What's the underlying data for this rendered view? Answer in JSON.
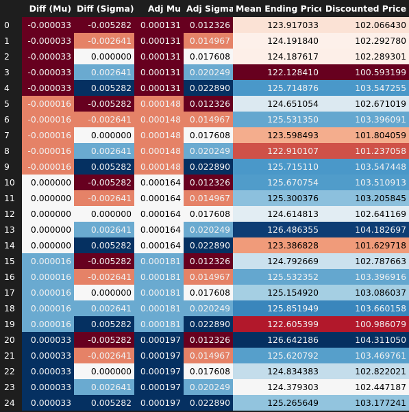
{
  "columns": [
    "Diff (Mu)",
    "Diff (Sigma)",
    "Adj Mu",
    "Adj Sigma",
    "Mean Ending Price",
    "Discounted Price"
  ],
  "rows": [
    {
      "index": "0",
      "cells": [
        {
          "v": "-0.000033",
          "bg": "#67001f",
          "fg": "#f1f1f1"
        },
        {
          "v": "-0.005282",
          "bg": "#67001f",
          "fg": "#f1f1f1"
        },
        {
          "v": "0.000131",
          "bg": "#67001f",
          "fg": "#f1f1f1"
        },
        {
          "v": "0.012326",
          "bg": "#67001f",
          "fg": "#f1f1f1"
        },
        {
          "v": "123.917033",
          "bg": "#fbe2d5",
          "fg": "#000000"
        },
        {
          "v": "102.066430",
          "bg": "#fbe2d5",
          "fg": "#000000"
        }
      ]
    },
    {
      "index": "1",
      "cells": [
        {
          "v": "-0.000033",
          "bg": "#67001f",
          "fg": "#f1f1f1"
        },
        {
          "v": "-0.002641",
          "bg": "#e58267",
          "fg": "#f1f1f1"
        },
        {
          "v": "0.000131",
          "bg": "#67001f",
          "fg": "#f1f1f1"
        },
        {
          "v": "0.014967",
          "bg": "#e58267",
          "fg": "#f1f1f1"
        },
        {
          "v": "124.191840",
          "bg": "#fdf0ea",
          "fg": "#000000"
        },
        {
          "v": "102.292780",
          "bg": "#fdf0ea",
          "fg": "#000000"
        }
      ]
    },
    {
      "index": "2",
      "cells": [
        {
          "v": "-0.000033",
          "bg": "#67001f",
          "fg": "#f1f1f1"
        },
        {
          "v": "0.000000",
          "bg": "#f7f7f7",
          "fg": "#000000"
        },
        {
          "v": "0.000131",
          "bg": "#67001f",
          "fg": "#f1f1f1"
        },
        {
          "v": "0.017608",
          "bg": "#f7f7f7",
          "fg": "#000000"
        },
        {
          "v": "124.187617",
          "bg": "#fdefe8",
          "fg": "#000000"
        },
        {
          "v": "102.289301",
          "bg": "#fdefe8",
          "fg": "#000000"
        }
      ]
    },
    {
      "index": "3",
      "cells": [
        {
          "v": "-0.000033",
          "bg": "#67001f",
          "fg": "#f1f1f1"
        },
        {
          "v": "0.002641",
          "bg": "#6aaad0",
          "fg": "#f1f1f1"
        },
        {
          "v": "0.000131",
          "bg": "#67001f",
          "fg": "#f1f1f1"
        },
        {
          "v": "0.020249",
          "bg": "#6aaad0",
          "fg": "#f1f1f1"
        },
        {
          "v": "122.128410",
          "bg": "#67001f",
          "fg": "#f1f1f1"
        },
        {
          "v": "100.593199",
          "bg": "#67001f",
          "fg": "#f1f1f1"
        }
      ]
    },
    {
      "index": "4",
      "cells": [
        {
          "v": "-0.000033",
          "bg": "#67001f",
          "fg": "#f1f1f1"
        },
        {
          "v": "0.005282",
          "bg": "#053061",
          "fg": "#f1f1f1"
        },
        {
          "v": "0.000131",
          "bg": "#67001f",
          "fg": "#f1f1f1"
        },
        {
          "v": "0.022890",
          "bg": "#053061",
          "fg": "#f1f1f1"
        },
        {
          "v": "125.714876",
          "bg": "#4a98c9",
          "fg": "#f1f1f1"
        },
        {
          "v": "103.547255",
          "bg": "#4a98c9",
          "fg": "#f1f1f1"
        }
      ]
    },
    {
      "index": "5",
      "cells": [
        {
          "v": "-0.000016",
          "bg": "#e58267",
          "fg": "#f1f1f1"
        },
        {
          "v": "-0.005282",
          "bg": "#67001f",
          "fg": "#f1f1f1"
        },
        {
          "v": "0.000148",
          "bg": "#e58267",
          "fg": "#f1f1f1"
        },
        {
          "v": "0.012326",
          "bg": "#67001f",
          "fg": "#f1f1f1"
        },
        {
          "v": "124.651054",
          "bg": "#dce9f1",
          "fg": "#000000"
        },
        {
          "v": "102.671019",
          "bg": "#dce9f1",
          "fg": "#000000"
        }
      ]
    },
    {
      "index": "6",
      "cells": [
        {
          "v": "-0.000016",
          "bg": "#e58267",
          "fg": "#f1f1f1"
        },
        {
          "v": "-0.002641",
          "bg": "#e58267",
          "fg": "#f1f1f1"
        },
        {
          "v": "0.000148",
          "bg": "#e58267",
          "fg": "#f1f1f1"
        },
        {
          "v": "0.014967",
          "bg": "#e58267",
          "fg": "#f1f1f1"
        },
        {
          "v": "125.531350",
          "bg": "#64a7cf",
          "fg": "#f1f1f1"
        },
        {
          "v": "103.396091",
          "bg": "#64a7cf",
          "fg": "#f1f1f1"
        }
      ]
    },
    {
      "index": "7",
      "cells": [
        {
          "v": "-0.000016",
          "bg": "#e58267",
          "fg": "#f1f1f1"
        },
        {
          "v": "0.000000",
          "bg": "#f7f7f7",
          "fg": "#000000"
        },
        {
          "v": "0.000148",
          "bg": "#e58267",
          "fg": "#f1f1f1"
        },
        {
          "v": "0.017608",
          "bg": "#f7f7f7",
          "fg": "#000000"
        },
        {
          "v": "123.598493",
          "bg": "#f4ad8d",
          "fg": "#000000"
        },
        {
          "v": "101.804059",
          "bg": "#f4ad8d",
          "fg": "#000000"
        }
      ]
    },
    {
      "index": "8",
      "cells": [
        {
          "v": "-0.000016",
          "bg": "#e58267",
          "fg": "#f1f1f1"
        },
        {
          "v": "0.002641",
          "bg": "#6aaad0",
          "fg": "#f1f1f1"
        },
        {
          "v": "0.000148",
          "bg": "#e58267",
          "fg": "#f1f1f1"
        },
        {
          "v": "0.020249",
          "bg": "#6aaad0",
          "fg": "#f1f1f1"
        },
        {
          "v": "122.910107",
          "bg": "#cf5148",
          "fg": "#f1f1f1"
        },
        {
          "v": "101.237058",
          "bg": "#cf5148",
          "fg": "#f1f1f1"
        }
      ]
    },
    {
      "index": "9",
      "cells": [
        {
          "v": "-0.000016",
          "bg": "#e58267",
          "fg": "#f1f1f1"
        },
        {
          "v": "0.005282",
          "bg": "#053061",
          "fg": "#f1f1f1"
        },
        {
          "v": "0.000148",
          "bg": "#e58267",
          "fg": "#f1f1f1"
        },
        {
          "v": "0.022890",
          "bg": "#053061",
          "fg": "#f1f1f1"
        },
        {
          "v": "125.715110",
          "bg": "#4a98c9",
          "fg": "#f1f1f1"
        },
        {
          "v": "103.547448",
          "bg": "#4a98c9",
          "fg": "#f1f1f1"
        }
      ]
    },
    {
      "index": "10",
      "cells": [
        {
          "v": "0.000000",
          "bg": "#f7f7f7",
          "fg": "#000000"
        },
        {
          "v": "-0.005282",
          "bg": "#67001f",
          "fg": "#f1f1f1"
        },
        {
          "v": "0.000164",
          "bg": "#f7f7f7",
          "fg": "#000000"
        },
        {
          "v": "0.012326",
          "bg": "#67001f",
          "fg": "#f1f1f1"
        },
        {
          "v": "125.670754",
          "bg": "#509cca",
          "fg": "#f1f1f1"
        },
        {
          "v": "103.510913",
          "bg": "#509cca",
          "fg": "#f1f1f1"
        }
      ]
    },
    {
      "index": "11",
      "cells": [
        {
          "v": "0.000000",
          "bg": "#f7f7f7",
          "fg": "#000000"
        },
        {
          "v": "-0.002641",
          "bg": "#e58267",
          "fg": "#f1f1f1"
        },
        {
          "v": "0.000164",
          "bg": "#f7f7f7",
          "fg": "#000000"
        },
        {
          "v": "0.014967",
          "bg": "#e58267",
          "fg": "#f1f1f1"
        },
        {
          "v": "125.300376",
          "bg": "#8cc0dd",
          "fg": "#000000"
        },
        {
          "v": "103.205845",
          "bg": "#8cc0dd",
          "fg": "#000000"
        }
      ]
    },
    {
      "index": "12",
      "cells": [
        {
          "v": "0.000000",
          "bg": "#f7f7f7",
          "fg": "#000000"
        },
        {
          "v": "0.000000",
          "bg": "#f7f7f7",
          "fg": "#000000"
        },
        {
          "v": "0.000164",
          "bg": "#f7f7f7",
          "fg": "#000000"
        },
        {
          "v": "0.017608",
          "bg": "#f7f7f7",
          "fg": "#000000"
        },
        {
          "v": "124.614813",
          "bg": "#e2edf3",
          "fg": "#000000"
        },
        {
          "v": "102.641169",
          "bg": "#e2edf3",
          "fg": "#000000"
        }
      ]
    },
    {
      "index": "13",
      "cells": [
        {
          "v": "0.000000",
          "bg": "#f7f7f7",
          "fg": "#000000"
        },
        {
          "v": "0.002641",
          "bg": "#6aaad0",
          "fg": "#f1f1f1"
        },
        {
          "v": "0.000164",
          "bg": "#f7f7f7",
          "fg": "#000000"
        },
        {
          "v": "0.020249",
          "bg": "#6aaad0",
          "fg": "#f1f1f1"
        },
        {
          "v": "126.486355",
          "bg": "#0d3d74",
          "fg": "#f1f1f1"
        },
        {
          "v": "104.182697",
          "bg": "#0d3d74",
          "fg": "#f1f1f1"
        }
      ]
    },
    {
      "index": "14",
      "cells": [
        {
          "v": "0.000000",
          "bg": "#f7f7f7",
          "fg": "#000000"
        },
        {
          "v": "0.005282",
          "bg": "#053061",
          "fg": "#f1f1f1"
        },
        {
          "v": "0.000164",
          "bg": "#f7f7f7",
          "fg": "#000000"
        },
        {
          "v": "0.022890",
          "bg": "#053061",
          "fg": "#f1f1f1"
        },
        {
          "v": "123.386828",
          "bg": "#f09b7a",
          "fg": "#000000"
        },
        {
          "v": "101.629718",
          "bg": "#f09b7a",
          "fg": "#000000"
        }
      ]
    },
    {
      "index": "15",
      "cells": [
        {
          "v": "0.000016",
          "bg": "#6aaad0",
          "fg": "#f1f1f1"
        },
        {
          "v": "-0.005282",
          "bg": "#67001f",
          "fg": "#f1f1f1"
        },
        {
          "v": "0.000181",
          "bg": "#6aaad0",
          "fg": "#f1f1f1"
        },
        {
          "v": "0.012326",
          "bg": "#67001f",
          "fg": "#f1f1f1"
        },
        {
          "v": "124.792669",
          "bg": "#cbe1ee",
          "fg": "#000000"
        },
        {
          "v": "102.787663",
          "bg": "#cbe1ee",
          "fg": "#000000"
        }
      ]
    },
    {
      "index": "16",
      "cells": [
        {
          "v": "0.000016",
          "bg": "#6aaad0",
          "fg": "#f1f1f1"
        },
        {
          "v": "-0.002641",
          "bg": "#e58267",
          "fg": "#f1f1f1"
        },
        {
          "v": "0.000181",
          "bg": "#6aaad0",
          "fg": "#f1f1f1"
        },
        {
          "v": "0.014967",
          "bg": "#e58267",
          "fg": "#f1f1f1"
        },
        {
          "v": "125.532352",
          "bg": "#64a7cf",
          "fg": "#f1f1f1"
        },
        {
          "v": "103.396916",
          "bg": "#64a7cf",
          "fg": "#f1f1f1"
        }
      ]
    },
    {
      "index": "17",
      "cells": [
        {
          "v": "0.000016",
          "bg": "#6aaad0",
          "fg": "#f1f1f1"
        },
        {
          "v": "0.000000",
          "bg": "#f7f7f7",
          "fg": "#000000"
        },
        {
          "v": "0.000181",
          "bg": "#6aaad0",
          "fg": "#f1f1f1"
        },
        {
          "v": "0.017608",
          "bg": "#f7f7f7",
          "fg": "#000000"
        },
        {
          "v": "125.154920",
          "bg": "#a5cfe3",
          "fg": "#000000"
        },
        {
          "v": "103.086037",
          "bg": "#a5cfe3",
          "fg": "#000000"
        }
      ]
    },
    {
      "index": "18",
      "cells": [
        {
          "v": "0.000016",
          "bg": "#6aaad0",
          "fg": "#f1f1f1"
        },
        {
          "v": "0.002641",
          "bg": "#6aaad0",
          "fg": "#f1f1f1"
        },
        {
          "v": "0.000181",
          "bg": "#6aaad0",
          "fg": "#f1f1f1"
        },
        {
          "v": "0.020249",
          "bg": "#6aaad0",
          "fg": "#f1f1f1"
        },
        {
          "v": "125.851949",
          "bg": "#3a86bc",
          "fg": "#f1f1f1"
        },
        {
          "v": "103.660158",
          "bg": "#3a86bc",
          "fg": "#f1f1f1"
        }
      ]
    },
    {
      "index": "19",
      "cells": [
        {
          "v": "0.000016",
          "bg": "#6aaad0",
          "fg": "#f1f1f1"
        },
        {
          "v": "0.005282",
          "bg": "#053061",
          "fg": "#f1f1f1"
        },
        {
          "v": "0.000181",
          "bg": "#6aaad0",
          "fg": "#f1f1f1"
        },
        {
          "v": "0.022890",
          "bg": "#053061",
          "fg": "#f1f1f1"
        },
        {
          "v": "122.605399",
          "bg": "#b2182b",
          "fg": "#f1f1f1"
        },
        {
          "v": "100.986079",
          "bg": "#b2182b",
          "fg": "#f1f1f1"
        }
      ]
    },
    {
      "index": "20",
      "cells": [
        {
          "v": "0.000033",
          "bg": "#053061",
          "fg": "#f1f1f1"
        },
        {
          "v": "-0.005282",
          "bg": "#67001f",
          "fg": "#f1f1f1"
        },
        {
          "v": "0.000197",
          "bg": "#053061",
          "fg": "#f1f1f1"
        },
        {
          "v": "0.012326",
          "bg": "#67001f",
          "fg": "#f1f1f1"
        },
        {
          "v": "126.642186",
          "bg": "#053061",
          "fg": "#f1f1f1"
        },
        {
          "v": "104.311050",
          "bg": "#053061",
          "fg": "#f1f1f1"
        }
      ]
    },
    {
      "index": "21",
      "cells": [
        {
          "v": "0.000033",
          "bg": "#053061",
          "fg": "#f1f1f1"
        },
        {
          "v": "-0.002641",
          "bg": "#e58267",
          "fg": "#f1f1f1"
        },
        {
          "v": "0.000197",
          "bg": "#053061",
          "fg": "#f1f1f1"
        },
        {
          "v": "0.014967",
          "bg": "#e58267",
          "fg": "#f1f1f1"
        },
        {
          "v": "125.620792",
          "bg": "#569fcb",
          "fg": "#f1f1f1"
        },
        {
          "v": "103.469761",
          "bg": "#569fcb",
          "fg": "#f1f1f1"
        }
      ]
    },
    {
      "index": "22",
      "cells": [
        {
          "v": "0.000033",
          "bg": "#053061",
          "fg": "#f1f1f1"
        },
        {
          "v": "0.000000",
          "bg": "#f7f7f7",
          "fg": "#000000"
        },
        {
          "v": "0.000197",
          "bg": "#053061",
          "fg": "#f1f1f1"
        },
        {
          "v": "0.017608",
          "bg": "#f7f7f7",
          "fg": "#000000"
        },
        {
          "v": "124.834383",
          "bg": "#c4ddeb",
          "fg": "#000000"
        },
        {
          "v": "102.822021",
          "bg": "#c4ddeb",
          "fg": "#000000"
        }
      ]
    },
    {
      "index": "23",
      "cells": [
        {
          "v": "0.000033",
          "bg": "#053061",
          "fg": "#f1f1f1"
        },
        {
          "v": "0.002641",
          "bg": "#6aaad0",
          "fg": "#f1f1f1"
        },
        {
          "v": "0.000197",
          "bg": "#053061",
          "fg": "#f1f1f1"
        },
        {
          "v": "0.020249",
          "bg": "#6aaad0",
          "fg": "#f1f1f1"
        },
        {
          "v": "124.379303",
          "bg": "#f6f6f6",
          "fg": "#000000"
        },
        {
          "v": "102.447187",
          "bg": "#f6f6f6",
          "fg": "#000000"
        }
      ]
    },
    {
      "index": "24",
      "cells": [
        {
          "v": "0.000033",
          "bg": "#053061",
          "fg": "#f1f1f1"
        },
        {
          "v": "0.005282",
          "bg": "#053061",
          "fg": "#f1f1f1"
        },
        {
          "v": "0.000197",
          "bg": "#053061",
          "fg": "#f1f1f1"
        },
        {
          "v": "0.022890",
          "bg": "#053061",
          "fg": "#f1f1f1"
        },
        {
          "v": "125.265649",
          "bg": "#92c4de",
          "fg": "#000000"
        },
        {
          "v": "103.177241",
          "bg": "#92c4de",
          "fg": "#000000"
        }
      ]
    }
  ]
}
